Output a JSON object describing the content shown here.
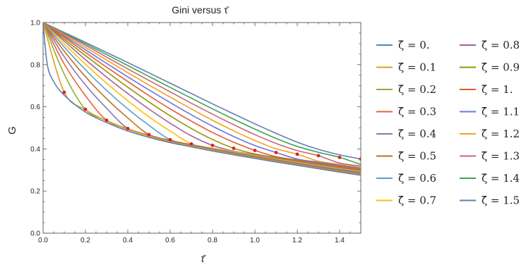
{
  "chart_data": {
    "type": "line",
    "title": "Gini versus τ̄",
    "xlabel": "τ̄",
    "ylabel": "G",
    "xlim": [
      0,
      1.5
    ],
    "ylim": [
      0,
      1
    ],
    "xticks": [
      "0.0",
      "0.2",
      "0.4",
      "0.6",
      "0.8",
      "1.0",
      "1.2",
      "1.4"
    ],
    "yticks": [
      "0.0",
      "0.2",
      "0.4",
      "0.6",
      "0.8",
      "1.0"
    ],
    "x_samples": [
      0,
      0.1,
      0.2,
      0.3,
      0.4,
      0.5,
      0.6,
      0.7,
      0.8,
      0.9,
      1.0,
      1.1,
      1.2,
      1.3,
      1.4,
      1.5
    ],
    "legend_placement": "right",
    "grid": false,
    "series": [
      {
        "name": "ζ̄ = 0.",
        "zeta": 0.0,
        "color": "#5E81B5",
        "values": [
          1.0,
          0.655,
          0.575,
          0.525,
          0.485,
          0.455,
          0.43,
          0.41,
          0.39,
          0.372,
          0.355,
          0.338,
          0.322,
          0.306,
          0.29,
          0.275
        ]
      },
      {
        "name": "ζ̄ = 0.1",
        "zeta": 0.1,
        "color": "#E19C24",
        "values": [
          1.0,
          0.669,
          0.586,
          0.533,
          0.492,
          0.461,
          0.434,
          0.413,
          0.393,
          0.374,
          0.357,
          0.34,
          0.324,
          0.308,
          0.292,
          0.277
        ]
      },
      {
        "name": "ζ̄ = 0.2",
        "zeta": 0.2,
        "color": "#8FB032",
        "values": [
          1.0,
          0.755,
          0.588,
          0.535,
          0.494,
          0.462,
          0.435,
          0.414,
          0.394,
          0.375,
          0.358,
          0.341,
          0.325,
          0.309,
          0.293,
          0.279
        ]
      },
      {
        "name": "ζ̄ = 0.3",
        "zeta": 0.3,
        "color": "#EB6235",
        "values": [
          1.0,
          0.803,
          0.653,
          0.536,
          0.496,
          0.464,
          0.437,
          0.415,
          0.395,
          0.377,
          0.36,
          0.343,
          0.327,
          0.311,
          0.295,
          0.281
        ]
      },
      {
        "name": "ζ̄ = 0.4",
        "zeta": 0.4,
        "color": "#8778B3",
        "values": [
          1.0,
          0.838,
          0.704,
          0.593,
          0.497,
          0.466,
          0.439,
          0.417,
          0.397,
          0.378,
          0.362,
          0.345,
          0.329,
          0.313,
          0.297,
          0.283
        ]
      },
      {
        "name": "ζ̄ = 0.5",
        "zeta": 0.5,
        "color": "#C56E1A",
        "values": [
          1.0,
          0.864,
          0.743,
          0.638,
          0.547,
          0.468,
          0.441,
          0.419,
          0.399,
          0.38,
          0.364,
          0.347,
          0.331,
          0.315,
          0.3,
          0.286
        ]
      },
      {
        "name": "ζ̄ = 0.6",
        "zeta": 0.6,
        "color": "#5D9EC7",
        "values": [
          1.0,
          0.884,
          0.776,
          0.678,
          0.59,
          0.512,
          0.444,
          0.421,
          0.401,
          0.383,
          0.366,
          0.349,
          0.333,
          0.318,
          0.303,
          0.289
        ]
      },
      {
        "name": "ζ̄ = 0.7",
        "zeta": 0.7,
        "color": "#FFBF00",
        "values": [
          1.0,
          0.899,
          0.802,
          0.712,
          0.629,
          0.552,
          0.485,
          0.424,
          0.404,
          0.386,
          0.369,
          0.352,
          0.336,
          0.321,
          0.306,
          0.292
        ]
      },
      {
        "name": "ζ̄ = 0.8",
        "zeta": 0.8,
        "color": "#A5609D",
        "values": [
          1.0,
          0.912,
          0.824,
          0.741,
          0.663,
          0.589,
          0.522,
          0.462,
          0.417,
          0.389,
          0.372,
          0.355,
          0.339,
          0.324,
          0.309,
          0.295
        ]
      },
      {
        "name": "ζ̄ = 0.9",
        "zeta": 0.9,
        "color": "#929600",
        "values": [
          1.0,
          0.921,
          0.843,
          0.767,
          0.693,
          0.623,
          0.557,
          0.497,
          0.445,
          0.403,
          0.376,
          0.359,
          0.343,
          0.328,
          0.313,
          0.299
        ]
      },
      {
        "name": "ζ̄ = 1.",
        "zeta": 1.0,
        "color": "#E95536",
        "values": [
          1.0,
          0.93,
          0.858,
          0.788,
          0.72,
          0.653,
          0.59,
          0.532,
          0.478,
          0.432,
          0.393,
          0.363,
          0.347,
          0.332,
          0.317,
          0.303
        ]
      },
      {
        "name": "ζ̄ = 1.1",
        "zeta": 1.1,
        "color": "#6679DE",
        "values": [
          1.0,
          0.936,
          0.871,
          0.806,
          0.742,
          0.68,
          0.62,
          0.562,
          0.508,
          0.459,
          0.416,
          0.383,
          0.352,
          0.337,
          0.322,
          0.308
        ]
      },
      {
        "name": "ζ̄ = 1.2",
        "zeta": 1.2,
        "color": "#F6A019",
        "values": [
          1.0,
          0.941,
          0.882,
          0.822,
          0.762,
          0.703,
          0.646,
          0.59,
          0.536,
          0.486,
          0.44,
          0.401,
          0.375,
          0.342,
          0.327,
          0.313
        ]
      },
      {
        "name": "ζ̄ = 1.3",
        "zeta": 1.3,
        "color": "#C8667D",
        "values": [
          1.0,
          0.946,
          0.892,
          0.836,
          0.78,
          0.725,
          0.671,
          0.617,
          0.565,
          0.515,
          0.468,
          0.426,
          0.392,
          0.368,
          0.333,
          0.319
        ]
      },
      {
        "name": "ζ̄ = 1.4",
        "zeta": 1.4,
        "color": "#3FA54E",
        "values": [
          1.0,
          0.95,
          0.899,
          0.848,
          0.796,
          0.744,
          0.692,
          0.641,
          0.59,
          0.541,
          0.494,
          0.45,
          0.412,
          0.384,
          0.36,
          0.326
        ]
      },
      {
        "name": "ζ̄ = 1.5",
        "zeta": 1.5,
        "color": "#5F7FB0",
        "values": [
          1.0,
          0.953,
          0.906,
          0.858,
          0.81,
          0.761,
          0.712,
          0.663,
          0.614,
          0.566,
          0.519,
          0.474,
          0.432,
          0.398,
          0.372,
          0.352
        ]
      }
    ],
    "markers": {
      "color": "#E0201B",
      "points": [
        {
          "x": 0.1,
          "y": 0.669
        },
        {
          "x": 0.2,
          "y": 0.588
        },
        {
          "x": 0.3,
          "y": 0.536
        },
        {
          "x": 0.4,
          "y": 0.497
        },
        {
          "x": 0.5,
          "y": 0.468
        },
        {
          "x": 0.6,
          "y": 0.444
        },
        {
          "x": 0.7,
          "y": 0.424
        },
        {
          "x": 0.8,
          "y": 0.417
        },
        {
          "x": 0.9,
          "y": 0.403
        },
        {
          "x": 1.0,
          "y": 0.393
        },
        {
          "x": 1.1,
          "y": 0.383
        },
        {
          "x": 1.2,
          "y": 0.375
        },
        {
          "x": 1.3,
          "y": 0.368
        },
        {
          "x": 1.4,
          "y": 0.36
        },
        {
          "x": 1.5,
          "y": 0.352
        }
      ]
    }
  }
}
